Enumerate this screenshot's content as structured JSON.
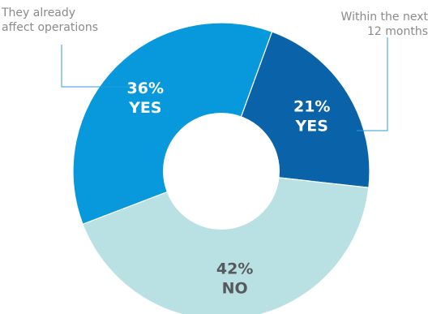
{
  "colors": {
    "leader": "#2a9ed8",
    "callout_text": "#8a8a8a",
    "hole": "#ffffff",
    "separator": "#ffffff"
  },
  "callouts": {
    "left_line1": "They already",
    "left_line2": "affect operations",
    "right_line1": "Within the next",
    "right_line2": "12 months"
  },
  "chart_data": {
    "type": "pie",
    "donut": true,
    "title": "",
    "slices": [
      {
        "pct": "21%",
        "label": "YES",
        "value": 21,
        "color": "#0a63a8",
        "text_color": "#ffffff"
      },
      {
        "pct": "42%",
        "label": "NO",
        "value": 42,
        "color": "#b9e1e3",
        "text_color": "#565a5e"
      },
      {
        "pct": "36%",
        "label": "YES",
        "value": 36,
        "color": "#0898dc",
        "text_color": "#ffffff"
      }
    ]
  }
}
